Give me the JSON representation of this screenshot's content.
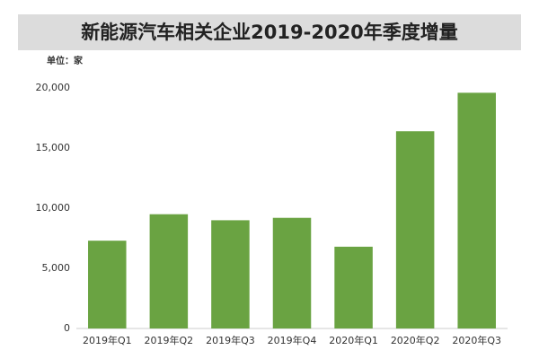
{
  "chart_data": {
    "type": "bar",
    "title": "新能源汽车相关企业2019-2020年季度增量",
    "unit": "单位：家",
    "categories": [
      "2019年Q1",
      "2019年Q2",
      "2019年Q3",
      "2019年Q4",
      "2020年Q1",
      "2020年Q2",
      "2020年Q3"
    ],
    "values": [
      7300,
      9500,
      9000,
      9200,
      6800,
      16400,
      19600
    ],
    "color": "#6aa342",
    "ylim": [
      0,
      20000
    ],
    "yticks": [
      0,
      {
        "value": 5000,
        "label": "5,000"
      },
      {
        "value": 10000,
        "label": "10,000"
      },
      {
        "value": 15000,
        "label": "15,000"
      },
      {
        "value": 20000,
        "label": "20,000"
      }
    ],
    "grid": false
  }
}
